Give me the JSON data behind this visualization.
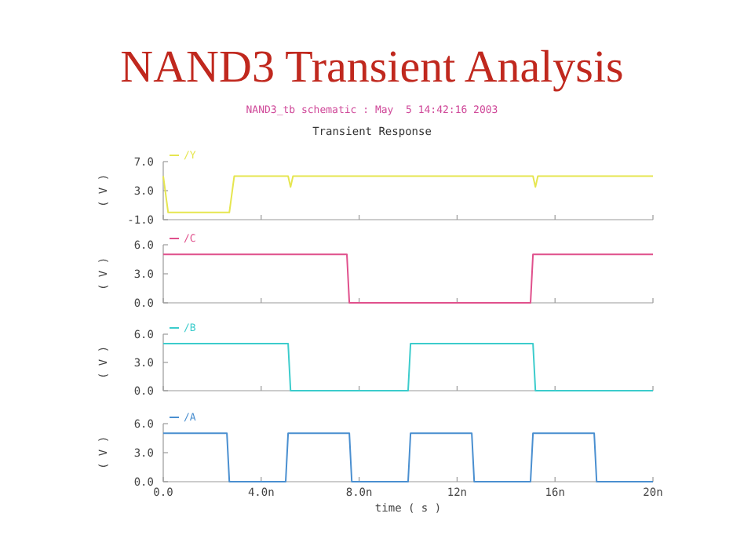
{
  "chart_data": [
    {
      "type": "line",
      "title": "NAND3 Transient Analysis",
      "subtitle": "NAND3_tb schematic : May  5 14:42:16 2003",
      "annotations": [
        "Transient Response"
      ],
      "ylabel": "( V )",
      "xlim": [
        0,
        20
      ],
      "xticks": [
        {
          "value": 0,
          "label": null
        },
        {
          "value": 4,
          "label": null
        },
        {
          "value": 8,
          "label": null
        },
        {
          "value": 12,
          "label": null
        },
        {
          "value": 16,
          "label": null
        },
        {
          "value": 20,
          "label": null
        }
      ],
      "ylim": [
        -1,
        7
      ],
      "yticks": [
        {
          "value": -1,
          "label": "-1.0"
        },
        {
          "value": 3,
          "label": "3.0"
        },
        {
          "value": 7,
          "label": "7.0"
        }
      ],
      "tick_labels": "y",
      "legend": "top left",
      "marker": "none",
      "series": [
        {
          "name": "/Y",
          "color": "#e6e650",
          "x": [
            0,
            0.2,
            2.7,
            2.9,
            5.1,
            5.2,
            5.3,
            5.5,
            15.1,
            15.2,
            15.3,
            15.5,
            20
          ],
          "values": [
            5,
            0,
            0,
            5,
            5,
            3.5,
            5,
            5,
            5,
            3.5,
            5,
            5,
            5
          ]
        }
      ]
    },
    {
      "type": "line",
      "ylabel": "( V )",
      "xlim": [
        0,
        20
      ],
      "xticks": [
        {
          "value": 0,
          "label": null
        },
        {
          "value": 4,
          "label": null
        },
        {
          "value": 8,
          "label": null
        },
        {
          "value": 12,
          "label": null
        },
        {
          "value": 16,
          "label": null
        },
        {
          "value": 20,
          "label": null
        }
      ],
      "ylim": [
        0,
        6
      ],
      "yticks": [
        {
          "value": 0,
          "label": "0.0"
        },
        {
          "value": 3,
          "label": "3.0"
        },
        {
          "value": 6,
          "label": "6.0"
        }
      ],
      "tick_labels": "y",
      "legend": "top left",
      "marker": "none",
      "series": [
        {
          "name": "/C",
          "color": "#e0508c",
          "x": [
            0,
            7.5,
            7.6,
            15,
            15.1,
            20
          ],
          "values": [
            5,
            5,
            0,
            0,
            5,
            5
          ]
        }
      ]
    },
    {
      "type": "line",
      "ylabel": "( V )",
      "xlim": [
        0,
        20
      ],
      "xticks": [
        {
          "value": 0,
          "label": null
        },
        {
          "value": 4,
          "label": null
        },
        {
          "value": 8,
          "label": null
        },
        {
          "value": 12,
          "label": null
        },
        {
          "value": 16,
          "label": null
        },
        {
          "value": 20,
          "label": null
        }
      ],
      "ylim": [
        0,
        6
      ],
      "yticks": [
        {
          "value": 0,
          "label": "0.0"
        },
        {
          "value": 3,
          "label": "3.0"
        },
        {
          "value": 6,
          "label": "6.0"
        }
      ],
      "tick_labels": "y",
      "legend": "top left",
      "marker": "none",
      "series": [
        {
          "name": "/B",
          "color": "#3ccccc",
          "x": [
            0,
            5.1,
            5.2,
            10,
            10.1,
            15.1,
            15.2,
            20
          ],
          "values": [
            5,
            5,
            0,
            0,
            5,
            5,
            0,
            0
          ]
        }
      ]
    },
    {
      "type": "line",
      "ylabel": "( V )",
      "xlabel": "time ( s )",
      "xlim": [
        0,
        20
      ],
      "xticks": [
        {
          "value": 0,
          "label": "0.0"
        },
        {
          "value": 4,
          "label": "4.0n"
        },
        {
          "value": 8,
          "label": "8.0n"
        },
        {
          "value": 12,
          "label": "12n"
        },
        {
          "value": 16,
          "label": "16n"
        },
        {
          "value": 20,
          "label": "20n"
        }
      ],
      "ylim": [
        0,
        6
      ],
      "yticks": [
        {
          "value": 0,
          "label": "0.0"
        },
        {
          "value": 3,
          "label": "3.0"
        },
        {
          "value": 6,
          "label": "6.0"
        }
      ],
      "legend": "top left",
      "marker": "none",
      "series": [
        {
          "name": "/A",
          "color": "#4a8fd0",
          "x": [
            0,
            2.6,
            2.7,
            5,
            5.1,
            7.6,
            7.7,
            10,
            10.1,
            12.6,
            12.7,
            15,
            15.1,
            17.6,
            17.7,
            20
          ],
          "values": [
            5,
            5,
            0,
            0,
            5,
            5,
            0,
            0,
            5,
            5,
            0,
            0,
            5,
            5,
            0,
            0
          ]
        }
      ]
    }
  ]
}
